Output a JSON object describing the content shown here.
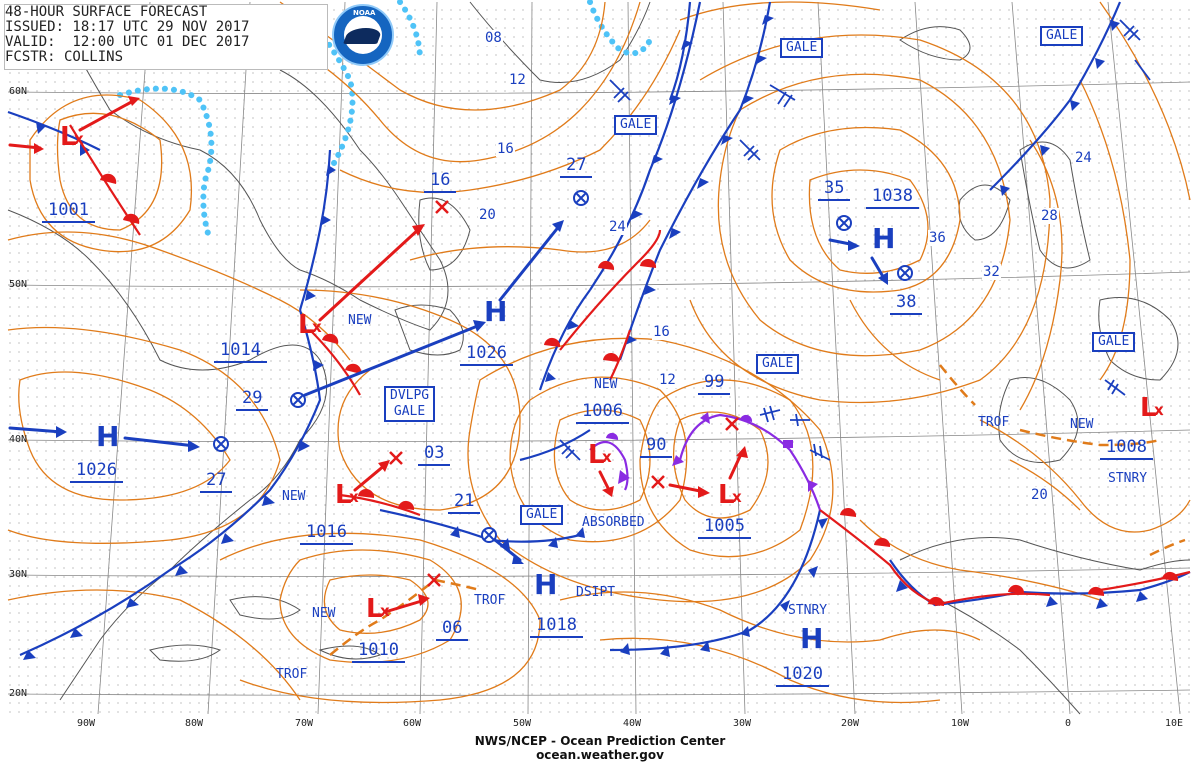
{
  "header": {
    "line1": "48-HOUR SURFACE FORECAST",
    "line2": "ISSUED: 18:17 UTC 29 NOV 2017",
    "line3": "VALID:  12:00 UTC 01 DEC 2017",
    "line4": "FCSTR: COLLINS",
    "logo_text": "NOAA"
  },
  "footer": {
    "agency": "NWS/NCEP - Ocean Prediction Center",
    "website": "ocean.weather.gov"
  },
  "grid": {
    "lat_labels": [
      "60N",
      "50N",
      "40N",
      "30N",
      "20N"
    ],
    "lon_labels": [
      "90W",
      "80W",
      "70W",
      "60W",
      "50W",
      "40W",
      "30W",
      "20W",
      "10W",
      "0",
      "10E"
    ]
  },
  "pressure_labels": {
    "p1001": "1001",
    "p1014": "1014",
    "p29": "29",
    "p1026_west": "1026",
    "p27_south": "27",
    "p1016": "1016",
    "p03": "03",
    "p21": "21",
    "p1010": "1010",
    "p06": "06",
    "p1018": "1018",
    "p1026_central": "1026",
    "p27_north": "27",
    "p1006": "1006",
    "p99": "99",
    "p90": "90",
    "p1005": "1005",
    "p1020": "1020",
    "p35": "35",
    "p1038": "1038",
    "p38": "38",
    "p1008": "1008",
    "p16": "16"
  },
  "isobar_labels": [
    "08",
    "12",
    "16",
    "20",
    "24",
    "24",
    "16",
    "12",
    "36",
    "32",
    "28",
    "24",
    "20"
  ],
  "tags": {
    "new_1": "NEW",
    "new_2": "NEW",
    "new_3": "NEW",
    "new_4": "NEW",
    "new_5": "NEW",
    "absorbed": "ABSORBED",
    "dsipt": "DSIPT",
    "stnry_1": "STNRY",
    "stnry_2": "STNRY",
    "trof_1": "TROF",
    "trof_2": "TROF",
    "trof_3": "TROF"
  },
  "warnings": {
    "gale_1": "GALE",
    "gale_2": "GALE",
    "gale_3": "GALE",
    "gale_4": "GALE",
    "gale_5": "GALE",
    "gale_6": "GALE",
    "dvlpg_line1": "DVLPG",
    "dvlpg_line2": "GALE"
  },
  "symbols": {
    "high": "H",
    "low": "L"
  },
  "colors": {
    "isobar": "#e07b1a",
    "cold_front": "#1a3fbf",
    "warm_front": "#e31a1a",
    "occluded_front": "#8a2be2",
    "ice_edge": "#4fc3f7",
    "coast": "#555555",
    "grid": "#888888",
    "text": "#1a3fbf"
  }
}
